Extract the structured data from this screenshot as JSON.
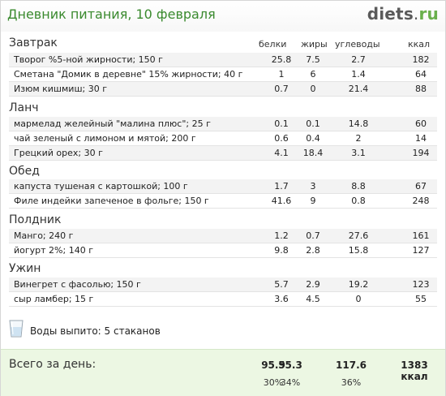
{
  "header": {
    "title": "Дневник питания, 10 февраля",
    "logo_part1": "diets",
    "logo_part2": ".",
    "logo_part3": "ru"
  },
  "columns": {
    "protein": "белки",
    "fat": "жиры",
    "carbs": "углеводы",
    "kcal": "ккал"
  },
  "meals": [
    {
      "title": "Завтрак",
      "items": [
        {
          "name": "Творог %5-ной жирности; 150 г",
          "protein": "25.8",
          "fat": "7.5",
          "carbs": "2.7",
          "kcal": "182"
        },
        {
          "name": "Сметана \"Домик в деревне\" 15% жирности; 40 г",
          "protein": "1",
          "fat": "6",
          "carbs": "1.4",
          "kcal": "64"
        },
        {
          "name": "Изюм кишмиш; 30 г",
          "protein": "0.7",
          "fat": "0",
          "carbs": "21.4",
          "kcal": "88"
        }
      ]
    },
    {
      "title": "Ланч",
      "items": [
        {
          "name": "мармелад желейный \"малина плюс\"; 25 г",
          "protein": "0.1",
          "fat": "0.1",
          "carbs": "14.8",
          "kcal": "60"
        },
        {
          "name": "чай зеленый с лимоном и мятой; 200 г",
          "protein": "0.6",
          "fat": "0.4",
          "carbs": "2",
          "kcal": "14"
        },
        {
          "name": "Грецкий орех; 30 г",
          "protein": "4.1",
          "fat": "18.4",
          "carbs": "3.1",
          "kcal": "194"
        }
      ]
    },
    {
      "title": "Обед",
      "items": [
        {
          "name": "капуста тушеная с картошкой; 100 г",
          "protein": "1.7",
          "fat": "3",
          "carbs": "8.8",
          "kcal": "67"
        },
        {
          "name": "Филе индейки запеченое в фольге; 150 г",
          "protein": "41.6",
          "fat": "9",
          "carbs": "0.8",
          "kcal": "248"
        }
      ]
    },
    {
      "title": "Полдник",
      "items": [
        {
          "name": "Манго; 240 г",
          "protein": "1.2",
          "fat": "0.7",
          "carbs": "27.6",
          "kcal": "161"
        },
        {
          "name": "йогурт 2%; 140 г",
          "protein": "9.8",
          "fat": "2.8",
          "carbs": "15.8",
          "kcal": "127"
        }
      ]
    },
    {
      "title": "Ужин",
      "items": [
        {
          "name": "Винегрет с фасолью; 150 г",
          "protein": "5.7",
          "fat": "2.9",
          "carbs": "19.2",
          "kcal": "123"
        },
        {
          "name": "сыр ламбер; 15 г",
          "protein": "3.6",
          "fat": "4.5",
          "carbs": "0",
          "kcal": "55"
        }
      ]
    }
  ],
  "water": {
    "label": "Воды выпито: 5 стаканов",
    "icon": "glass-icon"
  },
  "totals": {
    "label": "Всего за день:",
    "protein": "95.9",
    "fat": "55.3",
    "carbs": "117.6",
    "kcal": "1383 ккал",
    "protein_pct": "30%",
    "fat_pct": "34%",
    "carbs_pct": "36%"
  },
  "colors": {
    "title": "#3a8a2e",
    "logo_accent": "#6ab04c",
    "totals_bg": "#ecf7e3"
  }
}
